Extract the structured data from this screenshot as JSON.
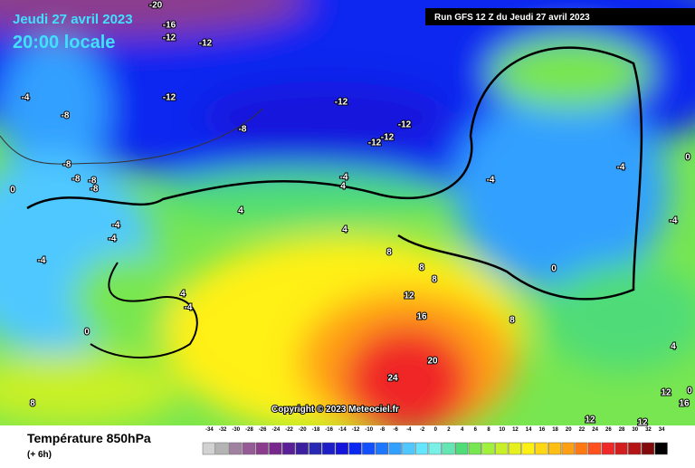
{
  "header": {
    "date": "Jeudi 27 avril 2023",
    "time": "20:00 locale",
    "run": "Run GFS 12 Z du Jeudi 27 avril 2023",
    "copyright": "Copyright © 2023 Meteociel.fr"
  },
  "legend": {
    "title": "Température 850hPa",
    "subtitle": "(+ 6h)",
    "ticks": [
      -34,
      -32,
      -30,
      -28,
      -26,
      -24,
      -22,
      -20,
      -18,
      -16,
      -14,
      -12,
      -10,
      -8,
      -6,
      -4,
      -2,
      0,
      2,
      4,
      6,
      8,
      10,
      12,
      14,
      16,
      18,
      20,
      22,
      24,
      26,
      28,
      30,
      32,
      34
    ],
    "colors": [
      "#d2d2d2",
      "#b4b4b4",
      "#a082a0",
      "#965a96",
      "#8c3c8c",
      "#78288c",
      "#5a1e96",
      "#3c1ea0",
      "#2828b4",
      "#1e1ec8",
      "#1414dc",
      "#0a28f0",
      "#1450ff",
      "#1e78ff",
      "#32a0ff",
      "#50c8ff",
      "#64e6ff",
      "#78f0e6",
      "#64e6b4",
      "#50dc78",
      "#78e650",
      "#a0f03c",
      "#c8f028",
      "#e6f01e",
      "#fff014",
      "#ffd714",
      "#ffbe14",
      "#ffa014",
      "#ff7814",
      "#ff501e",
      "#f02828",
      "#d21e1e",
      "#b41414",
      "#820a0a",
      "#000000"
    ]
  },
  "contour_labels": [
    "-20",
    "-16",
    "-12",
    "-12",
    "-12",
    "-4",
    "-8",
    "-12",
    "-8",
    "-12",
    "-12",
    "-12",
    "-8",
    "-8",
    "-8",
    "-8",
    "0",
    "-4",
    "-4",
    "-4",
    "-4",
    "0",
    "4",
    "4",
    "4",
    "4",
    "-4",
    "-4",
    "0",
    "-4",
    "8",
    "8",
    "8",
    "12",
    "16",
    "20",
    "24",
    "8",
    "0",
    "8",
    "12",
    "12",
    "12",
    "16",
    "-4",
    "4",
    "0"
  ]
}
